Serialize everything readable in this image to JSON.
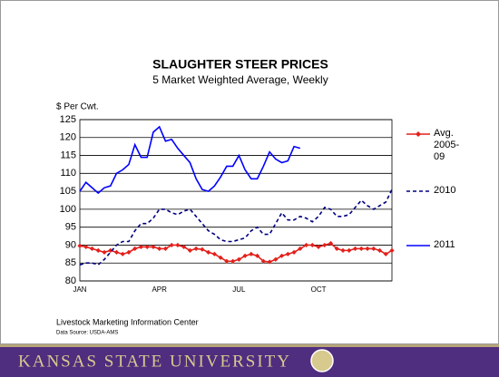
{
  "chart_data": {
    "type": "line",
    "title": "SLAUGHTER STEER PRICES",
    "subtitle": "5 Market Weighted Average, Weekly",
    "y_label": "$ Per Cwt.",
    "source": "Livestock Marketing Information Center",
    "data_source": "Data Source: USDA-AMS",
    "footer": "KANSAS STATE UNIVERSITY",
    "categories": [
      "JAN",
      null,
      null,
      null,
      null,
      null,
      null,
      null,
      null,
      null,
      null,
      null,
      null,
      "APR",
      null,
      null,
      null,
      null,
      null,
      null,
      null,
      null,
      null,
      null,
      null,
      null,
      "JUL",
      null,
      null,
      null,
      null,
      null,
      null,
      null,
      null,
      null,
      null,
      null,
      null,
      "OCT",
      null,
      null,
      null,
      null,
      null,
      null,
      null,
      null,
      null,
      null,
      null,
      null
    ],
    "ylim": [
      80,
      125
    ],
    "yticks": [
      80,
      85,
      90,
      95,
      100,
      105,
      110,
      115,
      120,
      125
    ],
    "grid": true,
    "legend": "right",
    "series": [
      {
        "name": "Avg. 2005-09",
        "color": "#e3201b",
        "marker": "diamond",
        "dash": "solid",
        "values": [
          89.8,
          89.5,
          89,
          88.5,
          88,
          88.5,
          88,
          87.5,
          88,
          89,
          89.5,
          89.5,
          89.5,
          89,
          89,
          90,
          90,
          89.5,
          88.5,
          89,
          88.8,
          88,
          87.5,
          86.5,
          85.5,
          85.5,
          86,
          87,
          87.5,
          87,
          85.5,
          85.3,
          86,
          87,
          87.5,
          88,
          89,
          90,
          90,
          89.5,
          90,
          90.5,
          89,
          88.5,
          88.5,
          89,
          89,
          89,
          89,
          88.5,
          87.5,
          88.5
        ]
      },
      {
        "name": "2010",
        "color": "#000080",
        "marker": "none",
        "dash": "dashed",
        "values": [
          84.5,
          85,
          85,
          84.5,
          86,
          88,
          90,
          91,
          91,
          94,
          96,
          96,
          97.5,
          100,
          100,
          99,
          98.5,
          99.5,
          100,
          98,
          96,
          94,
          93,
          91.5,
          91,
          91,
          91.5,
          92,
          94,
          95,
          93,
          93,
          96,
          99,
          97,
          97,
          98,
          97.5,
          96.5,
          98,
          100.5,
          100,
          98,
          98,
          98.5,
          100.5,
          102.5,
          101,
          100,
          101,
          102,
          105.5
        ]
      },
      {
        "name": "2011",
        "color": "#0000ff",
        "marker": "none",
        "dash": "solid",
        "values": [
          105,
          107.5,
          106,
          104.5,
          106,
          106.5,
          110,
          111,
          112.5,
          118,
          114.5,
          114.5,
          121.5,
          123,
          119,
          119.5,
          117,
          115,
          113,
          108.5,
          105.5,
          105,
          106.5,
          109,
          112,
          112,
          115,
          111,
          108.5,
          108.5,
          112,
          116,
          114,
          113,
          113.5,
          117.5,
          117,
          null,
          null,
          null,
          null,
          null,
          null,
          null,
          null,
          null,
          null,
          null,
          null,
          null,
          null,
          null
        ]
      }
    ]
  }
}
